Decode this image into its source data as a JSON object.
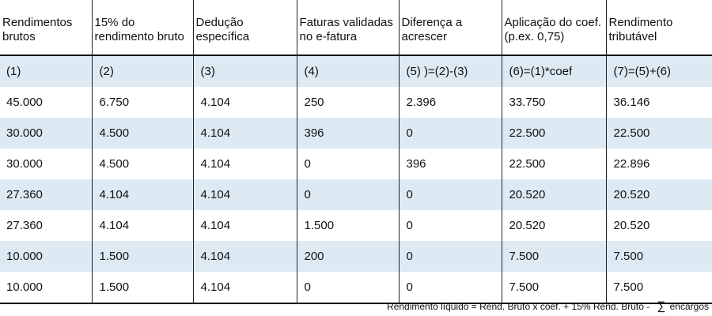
{
  "headers": [
    "Rendimentos brutos",
    "15% do rendimento bruto",
    "Dedução específica",
    "Faturas validadas no e-fatura",
    "Diferença a acrescer",
    "Aplicação do coef. (p.ex. 0,75)",
    "Rendimento tributável"
  ],
  "index_row": [
    "(1)",
    "(2)",
    "(3)",
    "(4)",
    "(5) )=(2)-(3)",
    "(6)=(1)*coef",
    "(7)=(5)+(6)"
  ],
  "rows": [
    [
      "45.000",
      "6.750",
      "4.104",
      "250",
      "2.396",
      "33.750",
      "36.146"
    ],
    [
      "30.000",
      "4.500",
      "4.104",
      "396",
      "0",
      "22.500",
      "22.500"
    ],
    [
      "30.000",
      "4.500",
      "4.104",
      "0",
      "396",
      "22.500",
      "22.896"
    ],
    [
      "27.360",
      "4.104",
      "4.104",
      "0",
      "0",
      "20.520",
      "20.520"
    ],
    [
      "27.360",
      "4.104",
      "4.104",
      "1.500",
      "0",
      "20.520",
      "20.520"
    ],
    [
      "10.000",
      "1.500",
      "4.104",
      "200",
      "0",
      "7.500",
      "7.500"
    ],
    [
      "10.000",
      "1.500",
      "4.104",
      "0",
      "0",
      "7.500",
      "7.500"
    ]
  ],
  "footnote": {
    "text": "Rendimento líquido = Rend. Bruto x coef. + 15% Rend. Bruto -",
    "symbol": "∑",
    "tail": "encargos"
  },
  "colors": {
    "shade": "#deeaf3",
    "rule": "#111111"
  }
}
